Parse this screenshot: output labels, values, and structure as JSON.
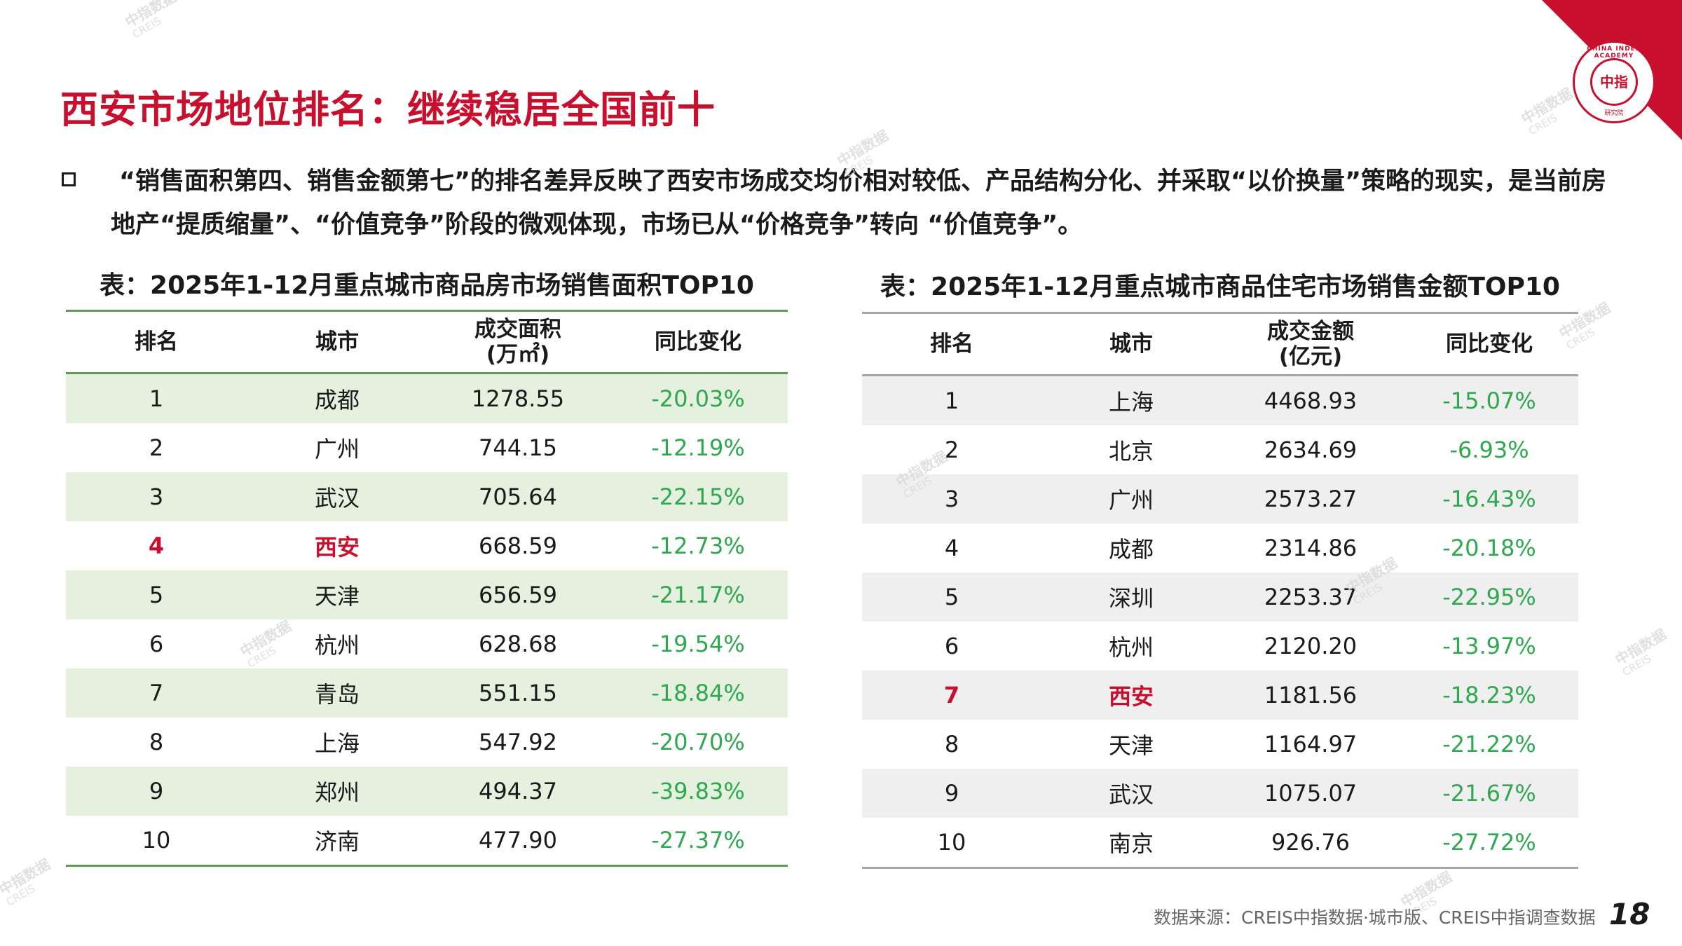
{
  "title": "西安市场地位排名：继续稳居全国前十",
  "bullet": "“销售面积第四、销售金额第七”的排名差异反映了西安市场成交均价相对较低、产品结构分化、并采取“以价换量”策略的现实，是当前房地产“提质缩量”、“价值竞争”阶段的微观体现，市场已从“价格竞争”转向 “价值竞争”。",
  "logo": {
    "text": "CHINA INDEX ACADEMY",
    "zh": "中指",
    "sub": "研究院"
  },
  "watermark": {
    "zh": "中指数据",
    "en": "CREIS"
  },
  "table_left": {
    "caption": "表：2025年1-12月重点城市商品房市场销售面积TOP10",
    "headers": {
      "rank": "排名",
      "city": "城市",
      "value_line1": "成交面积",
      "value_line2": "(万㎡)",
      "change": "同比变化"
    },
    "rows": [
      {
        "rank": "1",
        "city": "成都",
        "value": "1278.55",
        "change": "-20.03%"
      },
      {
        "rank": "2",
        "city": "广州",
        "value": "744.15",
        "change": "-12.19%"
      },
      {
        "rank": "3",
        "city": "武汉",
        "value": "705.64",
        "change": "-22.15%"
      },
      {
        "rank": "4",
        "city": "西安",
        "value": "668.59",
        "change": "-12.73%"
      },
      {
        "rank": "5",
        "city": "天津",
        "value": "656.59",
        "change": "-21.17%"
      },
      {
        "rank": "6",
        "city": "杭州",
        "value": "628.68",
        "change": "-19.54%"
      },
      {
        "rank": "7",
        "city": "青岛",
        "value": "551.15",
        "change": "-18.84%"
      },
      {
        "rank": "8",
        "city": "上海",
        "value": "547.92",
        "change": "-20.70%"
      },
      {
        "rank": "9",
        "city": "郑州",
        "value": "494.37",
        "change": "-39.83%"
      },
      {
        "rank": "10",
        "city": "济南",
        "value": "477.90",
        "change": "-27.37%"
      }
    ]
  },
  "table_right": {
    "caption": "表：2025年1-12月重点城市商品住宅市场销售金额TOP10",
    "headers": {
      "rank": "排名",
      "city": "城市",
      "value_line1": "成交金额",
      "value_line2": "(亿元)",
      "change": "同比变化"
    },
    "rows": [
      {
        "rank": "1",
        "city": "上海",
        "value": "4468.93",
        "change": "-15.07%"
      },
      {
        "rank": "2",
        "city": "北京",
        "value": "2634.69",
        "change": "-6.93%"
      },
      {
        "rank": "3",
        "city": "广州",
        "value": "2573.27",
        "change": "-16.43%"
      },
      {
        "rank": "4",
        "city": "成都",
        "value": "2314.86",
        "change": "-20.18%"
      },
      {
        "rank": "5",
        "city": "深圳",
        "value": "2253.37",
        "change": "-22.95%"
      },
      {
        "rank": "6",
        "city": "杭州",
        "value": "2120.20",
        "change": "-13.97%"
      },
      {
        "rank": "7",
        "city": "西安",
        "value": "1181.56",
        "change": "-18.23%"
      },
      {
        "rank": "8",
        "city": "天津",
        "value": "1164.97",
        "change": "-21.22%"
      },
      {
        "rank": "9",
        "city": "武汉",
        "value": "1075.07",
        "change": "-21.67%"
      },
      {
        "rank": "10",
        "city": "南京",
        "value": "926.76",
        "change": "-27.72%"
      }
    ]
  },
  "source": "数据来源：CREIS中指数据·城市版、CREIS中指调查数据",
  "page_number": "18",
  "colors": {
    "accent_red": "#c8102e",
    "change_green": "#2fa84f",
    "left_rule": "#5e9a55",
    "left_stripe": "#e6f0df",
    "right_rule": "#a6a6a6",
    "right_stripe": "#efefef"
  }
}
